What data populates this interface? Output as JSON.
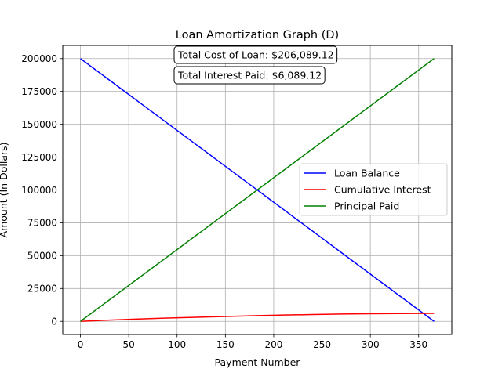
{
  "chart_data": {
    "type": "line",
    "title": "Loan Amortization Graph (D)",
    "xlabel": "Payment Number",
    "ylabel": "Amount (In Dollars)",
    "xlim": [
      -18.3,
      384.3
    ],
    "ylim": [
      -10000,
      210000
    ],
    "xticks": [
      0,
      50,
      100,
      150,
      200,
      250,
      300,
      350
    ],
    "yticks": [
      0,
      25000,
      50000,
      75000,
      100000,
      125000,
      150000,
      175000,
      200000
    ],
    "grid": true,
    "legend_position": "center-right",
    "annotations": [
      {
        "text": "Total Cost of Loan: $206,089.12"
      },
      {
        "text": "Total Interest Paid: $6,089.12"
      }
    ],
    "series": [
      {
        "name": "Loan Balance",
        "color": "#0000ff",
        "x": [
          0,
          30,
          60,
          90,
          120,
          150,
          180,
          210,
          240,
          270,
          300,
          330,
          366
        ],
        "y": [
          200000,
          183600,
          167200,
          150800,
          134400,
          118000,
          101600,
          85200,
          68800,
          52400,
          36000,
          19600,
          0
        ]
      },
      {
        "name": "Cumulative Interest",
        "color": "#ff0000",
        "x": [
          0,
          30,
          60,
          90,
          120,
          150,
          180,
          210,
          240,
          270,
          300,
          330,
          366
        ],
        "y": [
          0,
          950,
          1750,
          2500,
          3150,
          3750,
          4300,
          4800,
          5200,
          5550,
          5800,
          5970,
          6089.12
        ]
      },
      {
        "name": "Principal Paid",
        "color": "#008000",
        "x": [
          0,
          366
        ],
        "y": [
          0,
          200000
        ]
      }
    ]
  }
}
